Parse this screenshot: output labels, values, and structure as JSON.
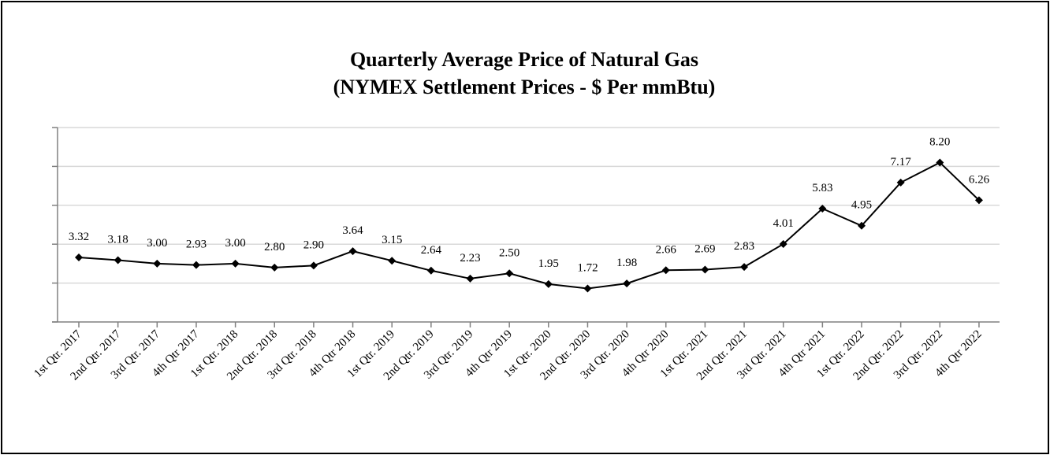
{
  "chart_data": {
    "type": "line",
    "title": "Quarterly Average Price of Natural Gas",
    "subtitle": "(NYMEX Settlement Prices - $ Per mmBtu)",
    "xlabel": "",
    "ylabel": "",
    "ylim": [
      0,
      10
    ],
    "ytick_step": 2,
    "grid": true,
    "show_ytick_labels": false,
    "categories": [
      "1st Qtr. 2017",
      "2nd Qtr. 2017",
      "3rd Qtr. 2017",
      "4th Qtr 2017",
      "1st Qtr. 2018",
      "2nd Qtr. 2018",
      "3rd Qtr. 2018",
      "4th Qtr 2018",
      "1st Qtr. 2019",
      "2nd Qtr. 2019",
      "3rd Qtr. 2019",
      "4th Qtr 2019",
      "1st Qtr. 2020",
      "2nd Qtr. 2020",
      "3rd Qtr. 2020",
      "4th Qtr 2020",
      "1st Qtr. 2021",
      "2nd Qtr. 2021",
      "3rd Qtr. 2021",
      "4th Qtr 2021",
      "1st Qtr. 2022",
      "2nd Qtr. 2022",
      "3rd Qtr. 2022",
      "4th Qtr 2022"
    ],
    "series": [
      {
        "name": "NYMEX Settlement Price",
        "values": [
          3.32,
          3.18,
          3.0,
          2.93,
          3.0,
          2.8,
          2.9,
          3.64,
          3.15,
          2.64,
          2.23,
          2.5,
          1.95,
          1.72,
          1.98,
          2.66,
          2.69,
          2.83,
          4.01,
          5.83,
          4.95,
          7.17,
          8.2,
          6.26
        ],
        "labels": [
          "3.32",
          "3.18",
          "3.00",
          "2.93",
          "3.00",
          "2.80",
          "2.90",
          "3.64",
          "3.15",
          "2.64",
          "2.23",
          "2.50",
          "1.95",
          "1.72",
          "1.98",
          "2.66",
          "2.69",
          "2.83",
          "4.01",
          "5.83",
          "4.95",
          "7.17",
          "8.20",
          "6.26"
        ],
        "marker": "diamond",
        "color": "#000000"
      }
    ]
  }
}
